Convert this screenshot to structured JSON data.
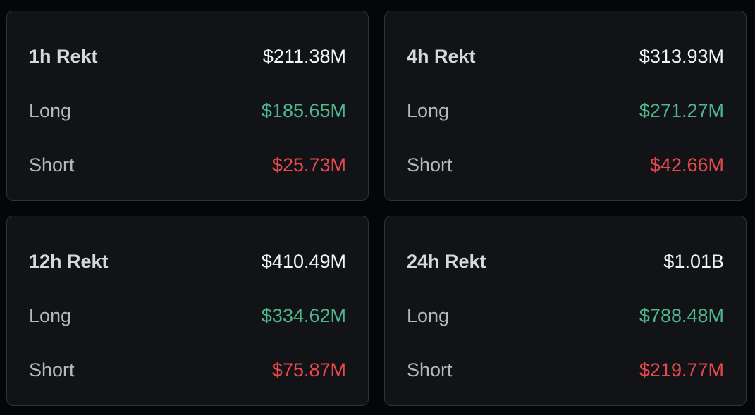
{
  "cards": [
    {
      "title": "1h Rekt",
      "total": "$211.38M",
      "long_label": "Long",
      "long_value": "$185.65M",
      "short_label": "Short",
      "short_value": "$25.73M"
    },
    {
      "title": "4h Rekt",
      "total": "$313.93M",
      "long_label": "Long",
      "long_value": "$271.27M",
      "short_label": "Short",
      "short_value": "$42.66M"
    },
    {
      "title": "12h Rekt",
      "total": "$410.49M",
      "long_label": "Long",
      "long_value": "$334.62M",
      "short_label": "Short",
      "short_value": "$75.87M"
    },
    {
      "title": "24h Rekt",
      "total": "$1.01B",
      "long_label": "Long",
      "long_value": "$788.48M",
      "short_label": "Short",
      "short_value": "$219.77M"
    }
  ],
  "colors": {
    "background": "#050608",
    "card": "#111317",
    "border": "#2e3239",
    "long": "#4fb58a",
    "short": "#e5484d",
    "total": "#f2f3f5"
  }
}
